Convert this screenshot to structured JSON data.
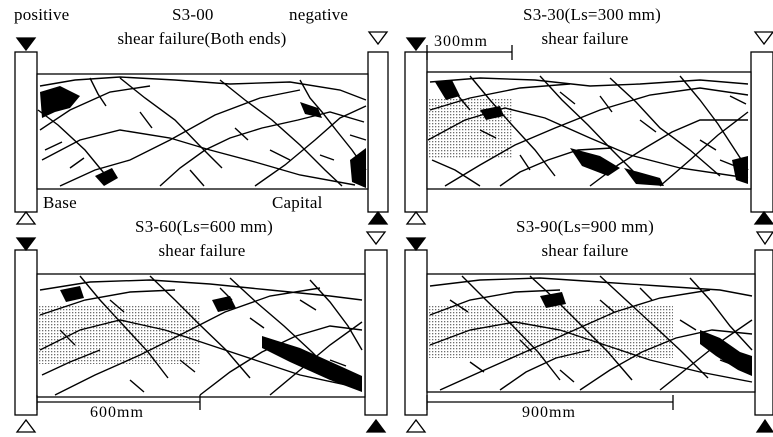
{
  "panels": [
    {
      "id": "S3-00",
      "label": "S3-00",
      "failure": "shear failure(Both ends)",
      "left_label": "positive",
      "right_label": "negative",
      "base_label": "Base",
      "capital_label": "Capital"
    },
    {
      "id": "S3-30",
      "label": "S3-30(Ls=300 mm)",
      "failure": "shear failure",
      "dimension": "300mm"
    },
    {
      "id": "S3-60",
      "label": "S3-60(Ls=600 mm)",
      "failure": "shear failure",
      "dimension": "600mm"
    },
    {
      "id": "S3-90",
      "label": "S3-90(Ls=900 mm)",
      "failure": "shear failure",
      "dimension": "900mm"
    }
  ],
  "colors": {
    "ink": "#000000",
    "stipple": "#bcbcbc",
    "background": "#ffffff"
  },
  "icons": [
    "filled-triangle-down-icon",
    "hollow-triangle-down-icon",
    "filled-triangle-up-icon",
    "hollow-triangle-up-icon"
  ]
}
